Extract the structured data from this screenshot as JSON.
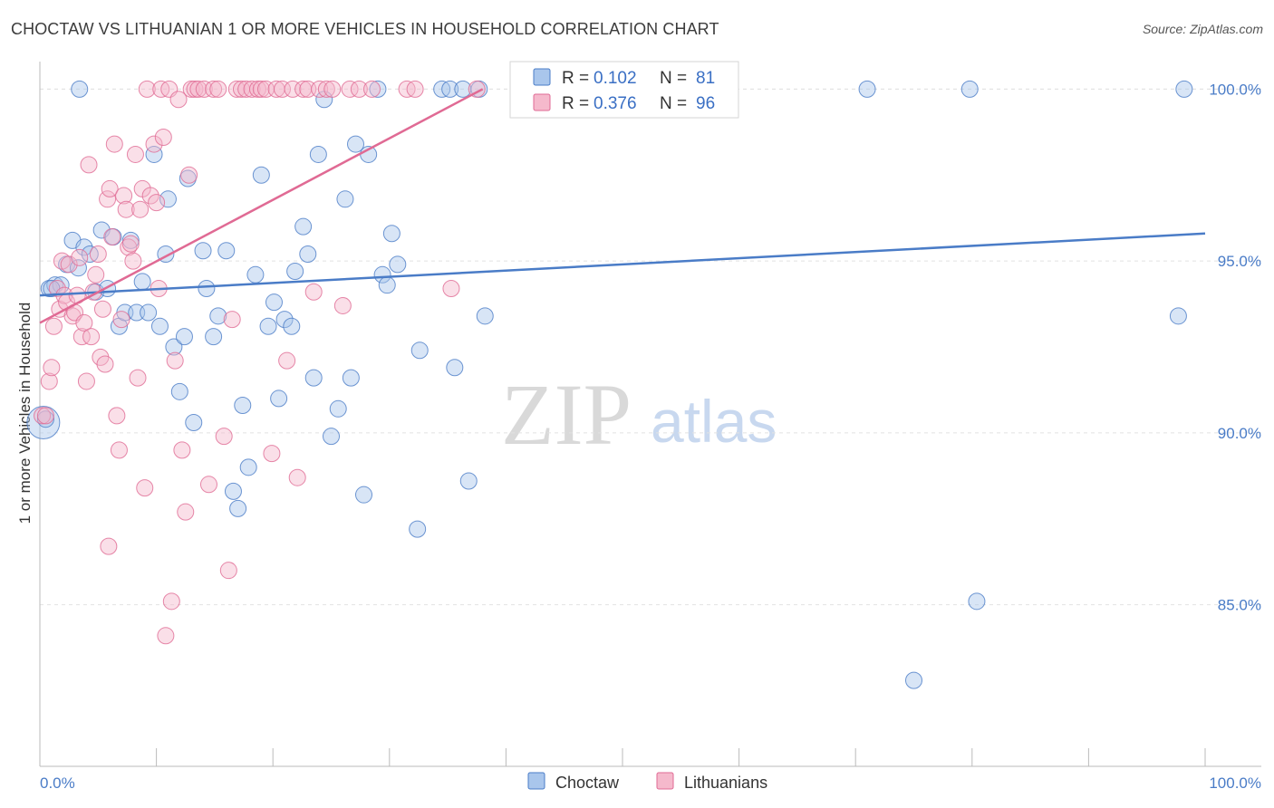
{
  "title": "CHOCTAW VS LITHUANIAN 1 OR MORE VEHICLES IN HOUSEHOLD CORRELATION CHART",
  "source": "Source: ZipAtlas.com",
  "watermark": {
    "zip": "ZIP",
    "atlas": "atlas"
  },
  "colors": {
    "choctaw": "#4a7cc7",
    "choctaw_fill": "#a9c6ec",
    "lithuanian": "#e06a94",
    "lithuanian_fill": "#f5b9cc",
    "tick": "#4a7cc7",
    "grid": "#e2e2e2"
  },
  "chart_data": {
    "type": "scatter",
    "title": "CHOCTAW VS LITHUANIAN 1 OR MORE VEHICLES IN HOUSEHOLD CORRELATION CHART",
    "xlabel": "",
    "ylabel": "1 or more Vehicles in Household",
    "xlim": [
      0,
      100
    ],
    "ylim": [
      80.3,
      100.8
    ],
    "x_tick_labels": [
      "0.0%",
      "100.0%"
    ],
    "y_ticks": [
      85,
      90,
      95,
      100
    ],
    "y_tick_labels": [
      "85.0%",
      "90.0%",
      "95.0%",
      "100.0%"
    ],
    "grid": "horizontal dashed",
    "legend": {
      "placement": "top-center",
      "entries": [
        {
          "r_label": "R =",
          "r_value": "0.102",
          "n_label": "N =",
          "n_value": "81"
        },
        {
          "r_label": "R =",
          "r_value": "0.376",
          "n_label": "N =",
          "n_value": "96"
        }
      ]
    },
    "series": [
      {
        "name": "Choctaw",
        "trend": {
          "x": [
            0,
            100
          ],
          "y": [
            94.0,
            95.8
          ]
        },
        "points": [
          [
            0.3,
            90.3
          ],
          [
            0.8,
            94.2
          ],
          [
            1.3,
            94.3
          ],
          [
            1.8,
            94.3
          ],
          [
            2.3,
            94.9
          ],
          [
            2.8,
            95.6
          ],
          [
            3.3,
            94.8
          ],
          [
            3.8,
            95.4
          ],
          [
            4.3,
            95.2
          ],
          [
            4.8,
            94.1
          ],
          [
            5.3,
            95.9
          ],
          [
            5.8,
            94.2
          ],
          [
            6.3,
            95.7
          ],
          [
            6.8,
            93.1
          ],
          [
            7.3,
            93.5
          ],
          [
            7.8,
            95.6
          ],
          [
            8.3,
            93.5
          ],
          [
            8.8,
            94.4
          ],
          [
            9.3,
            93.5
          ],
          [
            9.8,
            98.1
          ],
          [
            10.3,
            93.1
          ],
          [
            10.8,
            95.2
          ],
          [
            11.0,
            96.8
          ],
          [
            11.5,
            92.5
          ],
          [
            12.0,
            91.2
          ],
          [
            12.4,
            92.8
          ],
          [
            12.7,
            97.4
          ],
          [
            13.2,
            90.3
          ],
          [
            14.0,
            95.3
          ],
          [
            14.3,
            94.2
          ],
          [
            14.9,
            92.8
          ],
          [
            15.3,
            93.4
          ],
          [
            16.0,
            95.3
          ],
          [
            16.6,
            88.3
          ],
          [
            17.0,
            87.8
          ],
          [
            17.4,
            90.8
          ],
          [
            17.9,
            89.0
          ],
          [
            18.5,
            94.6
          ],
          [
            19.0,
            97.5
          ],
          [
            19.6,
            93.1
          ],
          [
            20.1,
            93.8
          ],
          [
            20.5,
            91.0
          ],
          [
            21.0,
            93.3
          ],
          [
            21.6,
            93.1
          ],
          [
            21.9,
            94.7
          ],
          [
            22.6,
            96.0
          ],
          [
            23.0,
            95.2
          ],
          [
            23.5,
            91.6
          ],
          [
            23.9,
            98.1
          ],
          [
            24.4,
            99.7
          ],
          [
            25.0,
            89.9
          ],
          [
            25.6,
            90.7
          ],
          [
            26.2,
            96.8
          ],
          [
            26.7,
            91.6
          ],
          [
            27.1,
            98.4
          ],
          [
            27.8,
            88.2
          ],
          [
            28.2,
            98.1
          ],
          [
            29.0,
            100.0
          ],
          [
            29.4,
            94.6
          ],
          [
            29.8,
            94.3
          ],
          [
            30.2,
            95.8
          ],
          [
            30.7,
            94.9
          ],
          [
            32.4,
            87.2
          ],
          [
            32.6,
            92.4
          ],
          [
            34.5,
            100.0
          ],
          [
            35.2,
            100.0
          ],
          [
            35.6,
            91.9
          ],
          [
            36.3,
            100.0
          ],
          [
            36.8,
            88.6
          ],
          [
            37.7,
            100.0
          ],
          [
            38.2,
            93.4
          ],
          [
            43.3,
            100.0
          ],
          [
            71.0,
            100.0
          ],
          [
            75.0,
            82.8
          ],
          [
            79.8,
            100.0
          ],
          [
            80.4,
            85.1
          ],
          [
            97.7,
            93.4
          ],
          [
            98.2,
            100.0
          ],
          [
            3.4,
            100.0
          ],
          [
            0.5,
            90.4
          ],
          [
            1.0,
            94.2
          ]
        ],
        "sizes": {
          "0": 18
        }
      },
      {
        "name": "Lithuanians",
        "trend": {
          "x": [
            0,
            38
          ],
          "y": [
            93.2,
            100.0
          ]
        },
        "points": [
          [
            0.2,
            90.5
          ],
          [
            0.5,
            90.5
          ],
          [
            0.8,
            91.5
          ],
          [
            1.0,
            91.9
          ],
          [
            1.2,
            93.1
          ],
          [
            1.5,
            94.2
          ],
          [
            1.7,
            93.6
          ],
          [
            1.9,
            95.0
          ],
          [
            2.1,
            94.0
          ],
          [
            2.3,
            93.8
          ],
          [
            2.5,
            94.9
          ],
          [
            2.8,
            93.4
          ],
          [
            3.0,
            93.5
          ],
          [
            3.2,
            94.0
          ],
          [
            3.4,
            95.1
          ],
          [
            3.6,
            92.8
          ],
          [
            3.8,
            93.2
          ],
          [
            4.0,
            91.5
          ],
          [
            4.2,
            97.8
          ],
          [
            4.4,
            92.8
          ],
          [
            4.6,
            94.1
          ],
          [
            4.8,
            94.6
          ],
          [
            5.0,
            95.2
          ],
          [
            5.2,
            92.2
          ],
          [
            5.4,
            93.6
          ],
          [
            5.6,
            92.0
          ],
          [
            5.8,
            96.8
          ],
          [
            6.0,
            97.1
          ],
          [
            6.2,
            95.7
          ],
          [
            6.4,
            98.4
          ],
          [
            6.6,
            90.5
          ],
          [
            6.8,
            89.5
          ],
          [
            7.0,
            93.3
          ],
          [
            7.2,
            96.9
          ],
          [
            7.4,
            96.5
          ],
          [
            7.6,
            95.4
          ],
          [
            7.8,
            95.5
          ],
          [
            8.0,
            95.0
          ],
          [
            8.2,
            98.1
          ],
          [
            8.4,
            91.6
          ],
          [
            8.6,
            96.5
          ],
          [
            8.8,
            97.1
          ],
          [
            9.0,
            88.4
          ],
          [
            9.2,
            100.0
          ],
          [
            9.5,
            96.9
          ],
          [
            9.8,
            98.4
          ],
          [
            10.0,
            96.7
          ],
          [
            10.2,
            94.2
          ],
          [
            10.4,
            100.0
          ],
          [
            10.6,
            98.6
          ],
          [
            10.8,
            84.1
          ],
          [
            11.1,
            100.0
          ],
          [
            11.3,
            85.1
          ],
          [
            11.6,
            92.1
          ],
          [
            11.9,
            99.7
          ],
          [
            12.2,
            89.5
          ],
          [
            12.5,
            87.7
          ],
          [
            12.8,
            97.5
          ],
          [
            13.0,
            100.0
          ],
          [
            13.3,
            100.0
          ],
          [
            13.6,
            100.0
          ],
          [
            14.1,
            100.0
          ],
          [
            14.5,
            88.5
          ],
          [
            14.9,
            100.0
          ],
          [
            15.3,
            100.0
          ],
          [
            15.8,
            89.9
          ],
          [
            16.2,
            86.0
          ],
          [
            16.5,
            93.3
          ],
          [
            16.9,
            100.0
          ],
          [
            17.3,
            100.0
          ],
          [
            17.7,
            100.0
          ],
          [
            18.2,
            100.0
          ],
          [
            18.7,
            100.0
          ],
          [
            19.0,
            100.0
          ],
          [
            19.4,
            100.0
          ],
          [
            19.9,
            89.4
          ],
          [
            20.3,
            100.0
          ],
          [
            20.8,
            100.0
          ],
          [
            21.2,
            92.1
          ],
          [
            21.7,
            100.0
          ],
          [
            22.1,
            88.7
          ],
          [
            22.6,
            100.0
          ],
          [
            23.0,
            100.0
          ],
          [
            23.5,
            94.1
          ],
          [
            24.0,
            100.0
          ],
          [
            24.6,
            100.0
          ],
          [
            25.1,
            100.0
          ],
          [
            26.0,
            93.7
          ],
          [
            26.6,
            100.0
          ],
          [
            27.4,
            100.0
          ],
          [
            28.5,
            100.0
          ],
          [
            31.5,
            100.0
          ],
          [
            32.2,
            100.0
          ],
          [
            35.3,
            94.2
          ],
          [
            37.5,
            100.0
          ],
          [
            5.9,
            86.7
          ]
        ]
      }
    ]
  },
  "bottom_legend": [
    {
      "label": "Choctaw"
    },
    {
      "label": "Lithuanians"
    }
  ]
}
